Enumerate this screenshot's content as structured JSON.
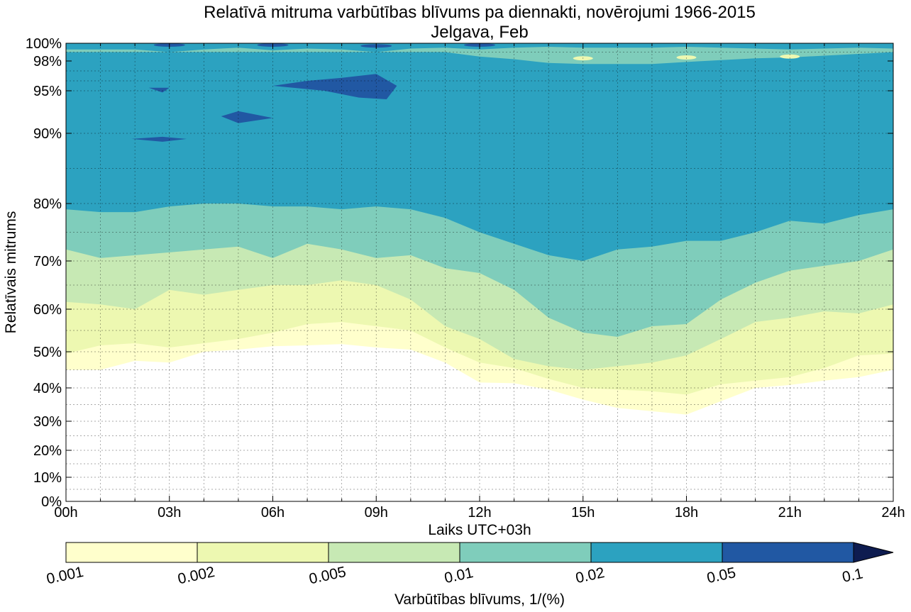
{
  "chart_data": {
    "type": "contourf",
    "title": "Relatīvā mitruma varbūtības blīvums pa diennakti, novērojumi 1966-2015",
    "subtitle": "Jelgava, Feb",
    "xlabel": "Laiks UTC+03h",
    "ylabel": "Relatīvais mitrums",
    "xlim": [
      0,
      24
    ],
    "x_ticks": [
      0,
      3,
      6,
      9,
      12,
      15,
      18,
      21,
      24
    ],
    "x_tick_labels": [
      "00h",
      "03h",
      "06h",
      "09h",
      "12h",
      "15h",
      "18h",
      "21h",
      "24h"
    ],
    "y_scale": "stretched toward high humidity",
    "y_ticks": [
      0,
      10,
      20,
      30,
      40,
      50,
      60,
      70,
      80,
      90,
      95,
      98,
      100
    ],
    "y_tick_labels": [
      "0%",
      "10%",
      "20%",
      "30%",
      "40%",
      "50%",
      "60%",
      "70%",
      "80%",
      "90%",
      "95%",
      "98%",
      "100%"
    ],
    "grid": true,
    "colorbar": {
      "label": "Varbūtības blīvums, 1/(%)",
      "levels": [
        0.001,
        0.002,
        0.005,
        0.01,
        0.02,
        0.05,
        0.1
      ],
      "level_labels": [
        "0.001",
        "0.002",
        "0.005",
        "0.01",
        "0.02",
        "0.05",
        "0.1"
      ],
      "colors": [
        "#ffffcc",
        "#edf8b1",
        "#c7e9b4",
        "#7fcdbb",
        "#2ca2c0",
        "#2158a3",
        "#0e1c50"
      ],
      "extend": "max"
    },
    "x_hours": [
      0,
      1,
      2,
      3,
      4,
      5,
      6,
      7,
      8,
      9,
      10,
      11,
      12,
      13,
      14,
      15,
      16,
      17,
      18,
      19,
      20,
      21,
      22,
      23,
      24
    ],
    "contours": [
      {
        "level": 0.001,
        "lower_bound_rh": [
          45,
          45,
          47.5,
          47,
          50,
          50.5,
          51.3,
          51.5,
          51.8,
          51,
          50.5,
          47,
          41.5,
          41.3,
          39.5,
          36.5,
          34,
          33,
          32,
          36,
          40,
          40.8,
          42,
          43,
          45
        ]
      },
      {
        "level": 0.002,
        "lower_bound_rh": [
          49.5,
          51.5,
          52,
          51,
          52,
          53,
          54.5,
          56.5,
          57,
          56,
          55,
          51,
          47,
          45.5,
          42.5,
          40,
          39.5,
          39,
          38,
          41,
          42,
          43,
          45.5,
          49,
          49.5
        ]
      },
      {
        "level": 0.005,
        "lower_bound_rh": [
          61.5,
          61,
          60,
          64,
          63,
          64,
          65,
          65,
          66,
          65,
          62,
          56,
          53,
          48,
          46,
          45,
          46,
          47,
          49,
          53,
          57,
          58,
          59.5,
          59,
          61
        ]
      },
      {
        "level": 0.01,
        "lower_bound_rh": [
          72,
          70.5,
          71,
          71.5,
          72,
          72.5,
          70.5,
          73,
          72,
          70.5,
          71,
          68.5,
          67.5,
          64,
          58,
          54.5,
          53.5,
          56,
          56.5,
          62,
          65.5,
          68,
          69,
          70,
          72
        ]
      },
      {
        "level": 0.02,
        "lower_bound_rh": [
          79,
          78.5,
          78.5,
          79.5,
          80,
          80,
          79.5,
          79.5,
          79,
          79.5,
          79,
          77.5,
          75,
          73,
          71,
          70,
          72,
          72.5,
          73.5,
          73.5,
          75,
          77,
          76.5,
          78,
          79
        ]
      }
    ],
    "high_density_band_0_02": {
      "upper_bound_rh": [
        99,
        99,
        99,
        99,
        99,
        99,
        99,
        99,
        99,
        99,
        99,
        99,
        98.5,
        98.2,
        97.8,
        97.7,
        97.7,
        97.7,
        97.9,
        98.1,
        98.3,
        98.4,
        98.6,
        98.8,
        99
      ]
    },
    "islands_0_05": [
      {
        "t": [
          2.4,
          3.0,
          2.8
        ],
        "rh": [
          95.3,
          95.3,
          94.8
        ]
      },
      {
        "t": [
          1.9,
          2.8,
          3.5,
          2.8
        ],
        "rh": [
          89.2,
          89.5,
          89.2,
          88.8
        ]
      },
      {
        "t": [
          4.5,
          5.0,
          6.0,
          5.0
        ],
        "rh": [
          92.0,
          92.6,
          91.8,
          91.2
        ]
      },
      {
        "t": [
          6.0,
          7.0,
          8.0,
          9.0,
          9.6,
          9.3,
          8.5,
          7.5
        ],
        "rh": [
          95.5,
          96.0,
          96.3,
          96.7,
          95.5,
          94.0,
          94.2,
          95.0
        ]
      }
    ],
    "top_fringe_0_02": {
      "t": [
        0,
        2,
        3,
        4,
        5,
        6,
        7,
        8,
        9,
        10,
        11,
        12,
        13,
        14,
        15,
        16,
        17,
        18,
        19,
        20,
        21,
        22,
        23,
        24
      ],
      "rh": [
        99.3,
        99.3,
        99.0,
        99.3,
        99.5,
        99.2,
        99.4,
        99.3,
        99.0,
        99.4,
        99.5,
        99.3,
        99.5,
        99.6,
        99.5,
        99.5,
        99.5,
        99.6,
        99.5,
        99.4,
        99.3,
        99.4,
        99.5,
        99.4
      ]
    }
  }
}
